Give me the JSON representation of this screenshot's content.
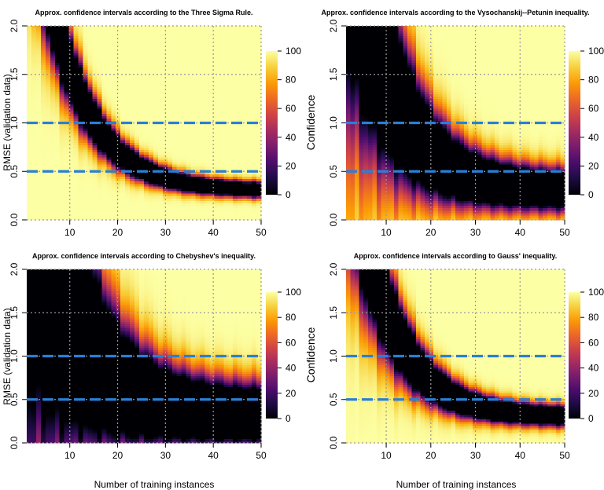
{
  "figure": {
    "ylabel": "RMSE (validation data)",
    "xlabel": "Number of training instances",
    "colorbar_label": "Confidence"
  },
  "colors": {
    "reference_line": "#2a7fd4",
    "grid": "#9a9a9a",
    "colormap": [
      "#000004",
      "#1b0c41",
      "#4a0c6b",
      "#781c6d",
      "#a52c60",
      "#cf4446",
      "#ed6925",
      "#fb9b06",
      "#f7d13d",
      "#fcffa4"
    ]
  },
  "chart_data": [
    {
      "type": "heatmap",
      "title": "Approx. confidence intervals according to the Three Sigma Rule.",
      "x_range": [
        1,
        50
      ],
      "y_range": [
        0,
        2
      ],
      "x_ticks": [
        10,
        20,
        30,
        40,
        50
      ],
      "y_ticks": [
        "0.0",
        "0.5",
        "1.0",
        "1.5",
        "2.0"
      ],
      "grid": true,
      "reference_lines": [
        0.5,
        1.0
      ],
      "colorbar": {
        "min": 0,
        "max": 100,
        "ticks": [
          0,
          20,
          40,
          60,
          80,
          100
        ]
      },
      "band": {
        "center_at_n1": 3.6,
        "center_asymptote": 0.3,
        "decay": 0.11,
        "width_rel": 0.2
      }
    },
    {
      "type": "heatmap",
      "title": "Approx. confidence intervals according to the Vysochanskij--Petunin inequality.",
      "x_range": [
        1,
        50
      ],
      "y_range": [
        0,
        2
      ],
      "x_ticks": [
        10,
        20,
        30,
        40,
        50
      ],
      "y_ticks": [
        "0.0",
        "0.5",
        "1.0",
        "1.5",
        "2.0"
      ],
      "grid": true,
      "reference_lines": [
        0.5,
        1.0
      ],
      "colorbar": {
        "min": 0,
        "max": 100,
        "ticks": [
          0,
          20,
          40,
          60,
          80,
          100
        ]
      },
      "band": {
        "center_at_n1": 3.6,
        "center_asymptote": 0.3,
        "decay": 0.11,
        "width_rel": 0.55
      }
    },
    {
      "type": "heatmap",
      "title": "Approx. confidence intervals according to Chebyshev's inequality.",
      "x_range": [
        1,
        50
      ],
      "y_range": [
        0,
        2
      ],
      "x_ticks": [
        10,
        20,
        30,
        40,
        50
      ],
      "y_ticks": [
        "0.0",
        "0.5",
        "1.0",
        "1.5",
        "2.0"
      ],
      "grid": true,
      "reference_lines": [
        0.5,
        1.0
      ],
      "colorbar": {
        "min": 0,
        "max": 100,
        "ticks": [
          0,
          20,
          40,
          60,
          80,
          100
        ]
      },
      "band": {
        "center_at_n1": 3.6,
        "center_asymptote": 0.32,
        "decay": 0.11,
        "width_rel": 0.85
      }
    },
    {
      "type": "heatmap",
      "title": "Approx. confidence intervals according to Gauss' inequality.",
      "x_range": [
        1,
        50
      ],
      "y_range": [
        0,
        2
      ],
      "x_ticks": [
        10,
        20,
        30,
        40,
        50
      ],
      "y_ticks": [
        "0.0",
        "0.5",
        "1.0",
        "1.5",
        "2.0"
      ],
      "grid": true,
      "reference_lines": [
        0.5,
        1.0
      ],
      "colorbar": {
        "min": 0,
        "max": 100,
        "ticks": [
          0,
          20,
          40,
          60,
          80,
          100
        ]
      },
      "band": {
        "center_at_n1": 3.6,
        "center_asymptote": 0.3,
        "decay": 0.11,
        "width_rel": 0.3
      }
    }
  ]
}
